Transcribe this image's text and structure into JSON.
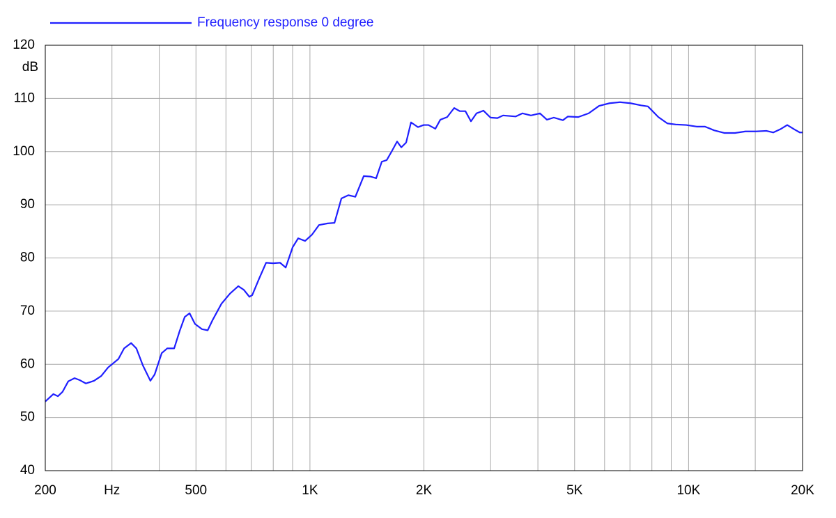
{
  "chart_data": {
    "type": "line",
    "x_scale": "log",
    "y_label": "dB",
    "xlim": [
      200,
      20000
    ],
    "ylim": [
      40,
      120
    ],
    "yticks": [
      40,
      50,
      60,
      70,
      80,
      90,
      100,
      110,
      120
    ],
    "xticks": [
      200,
      {
        "value": 300,
        "label": "Hz"
      },
      500,
      {
        "value": 1000,
        "label": "1K"
      },
      {
        "value": 2000,
        "label": "2K"
      },
      {
        "value": 5000,
        "label": "5K"
      },
      {
        "value": 10000,
        "label": "10K"
      },
      {
        "value": 20000,
        "label": "20K"
      }
    ],
    "x_minor_ticks": [
      400,
      600,
      700,
      800,
      900,
      3000,
      4000,
      6000,
      7000,
      8000,
      9000,
      15000
    ],
    "grid": true,
    "legend": "top-left",
    "x": [
      200,
      210,
      216,
      222,
      230,
      239,
      247,
      256,
      269,
      281,
      293,
      312,
      323,
      337,
      348,
      362,
      379,
      389,
      406,
      420,
      438,
      453,
      467,
      481,
      497,
      519,
      537,
      553,
      584,
      615,
      647,
      669,
      692,
      704,
      734,
      766,
      799,
      834,
      863,
      900,
      931,
      971,
      1013,
      1057,
      1113,
      1161,
      1211,
      1263,
      1318,
      1387,
      1447,
      1496,
      1548,
      1595,
      1643,
      1699,
      1743,
      1795,
      1849,
      1929,
      1996,
      2056,
      2144,
      2210,
      2304,
      2404,
      2488,
      2574,
      2662,
      2754,
      2873,
      2998,
      3127,
      3236,
      3492,
      3643,
      3833,
      4050,
      4225,
      4407,
      4656,
      4798,
      5112,
      5447,
      5803,
      6185,
      6591,
      7024,
      7485,
      7808,
      8320,
      8790,
      9250,
      9856,
      10504,
      11052,
      11678,
      12444,
      13260,
      14132,
      15060,
      16048,
      16742,
      17466,
      18220,
      19008,
      19662,
      20000
    ],
    "series": [
      {
        "name": "Frequency response 0 degree",
        "color": "#1f1fff",
        "values": [
          53.0,
          54.4,
          54.0,
          54.8,
          56.8,
          57.4,
          57.0,
          56.4,
          56.9,
          57.8,
          59.4,
          61.0,
          63.0,
          64.0,
          63.0,
          59.8,
          56.9,
          58.1,
          62.1,
          63.0,
          63.0,
          66.3,
          68.9,
          69.6,
          67.6,
          66.6,
          66.4,
          68.3,
          71.4,
          73.3,
          74.7,
          74.0,
          72.7,
          73.0,
          76.1,
          79.1,
          79.0,
          79.1,
          78.2,
          82.0,
          83.7,
          83.2,
          84.4,
          86.2,
          86.5,
          86.6,
          91.2,
          91.8,
          91.5,
          95.4,
          95.3,
          95.0,
          98.1,
          98.4,
          100.0,
          101.9,
          100.8,
          101.7,
          105.5,
          104.6,
          105.0,
          105.0,
          104.3,
          106.0,
          106.5,
          108.2,
          107.6,
          107.6,
          105.7,
          107.2,
          107.7,
          106.4,
          106.3,
          106.8,
          106.6,
          107.2,
          106.8,
          107.2,
          106.0,
          106.4,
          105.9,
          106.6,
          106.5,
          107.2,
          108.6,
          109.1,
          109.3,
          109.1,
          108.7,
          108.5,
          106.5,
          105.3,
          105.1,
          105.0,
          104.7,
          104.7,
          104.0,
          103.5,
          103.5,
          103.8,
          103.8,
          103.9,
          103.6,
          104.2,
          105.0,
          104.2,
          103.6,
          103.6
        ]
      }
    ]
  }
}
